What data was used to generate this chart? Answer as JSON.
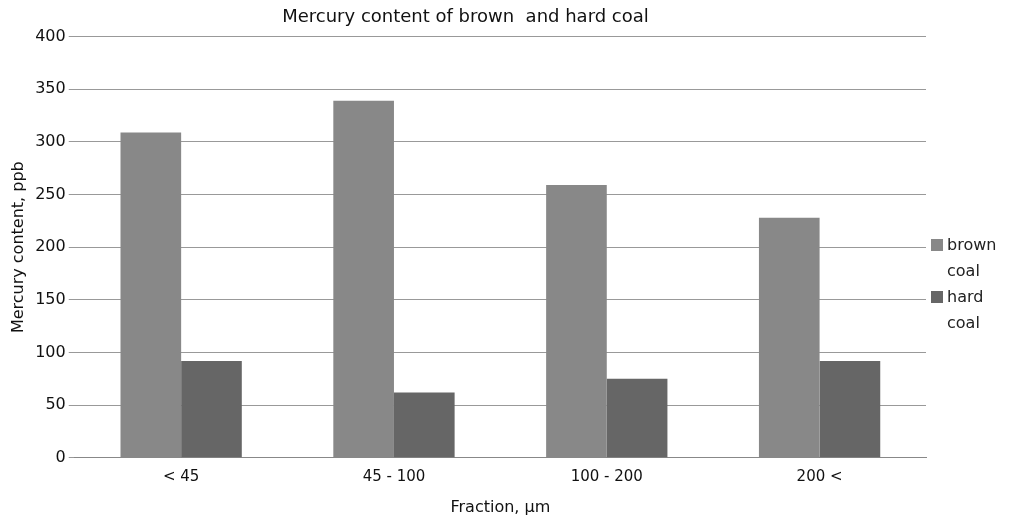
{
  "chart_data": {
    "type": "bar",
    "title": "Mercury content of brown  and hard coal",
    "xlabel": "Fraction, µm",
    "ylabel": "Mercury content, ppb",
    "categories": [
      "< 45",
      "45 - 100",
      "100 - 200",
      "200 <"
    ],
    "series": [
      {
        "name": "brown coal",
        "color": "#888888",
        "values": [
          309,
          339,
          259,
          228
        ]
      },
      {
        "name": "hard coal",
        "color": "#666666",
        "values": [
          92,
          62,
          75,
          92
        ]
      }
    ],
    "ylim": [
      0,
      400
    ],
    "yticks": [
      0,
      50,
      100,
      150,
      200,
      250,
      300,
      350,
      400
    ],
    "grid": "y",
    "legend": "right"
  }
}
